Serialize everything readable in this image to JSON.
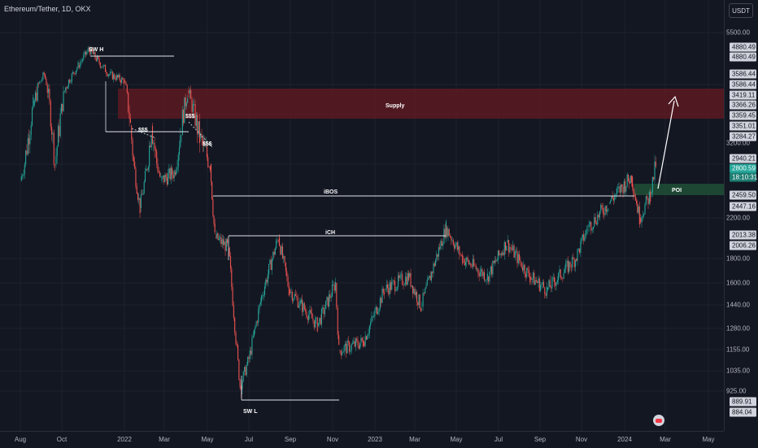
{
  "header": {
    "symbol_title": "Ethereum/Tether, 1D, OKX",
    "currency": "USDT"
  },
  "price_axis": {
    "ticks": [
      "5500.00",
      "3200.00",
      "2200.00",
      "1800.00",
      "1600.00",
      "1440.00",
      "1280.00",
      "1155.00",
      "1035.00",
      "925.00"
    ],
    "labels": [
      "4880.49",
      "4880.49",
      "3586.44",
      "3586.44",
      "3419.11",
      "3366.26",
      "3359.45",
      "3351.01",
      "3284.27",
      "2940.21",
      "2459.50",
      "2447.16",
      "2013.38",
      "2006.26",
      "889.91",
      "884.04"
    ],
    "current_price": "2800.59",
    "countdown": "18:10:31"
  },
  "time_axis": {
    "labels": [
      "Aug",
      "Oct",
      "2022",
      "Mar",
      "May",
      "Jul",
      "Sep",
      "Nov",
      "2023",
      "Mar",
      "May",
      "Jul",
      "Sep",
      "Nov",
      "2024",
      "Mar",
      "May"
    ]
  },
  "annotations": {
    "sw_high": "SW H",
    "sw_low": "SW L",
    "supply": "Supply",
    "liq1": "$$$",
    "liq2": "$$$",
    "liq3": "$$$",
    "ibos": "iBOS",
    "ich": "iCH",
    "poi": "POI"
  },
  "colors": {
    "background": "#131722",
    "up_candle": "#26a69a",
    "down_candle": "#ef5350",
    "supply_zone": "#5c1a22",
    "poi_zone": "#1f4d35",
    "current_price_label": "#26a69a"
  },
  "chart_data": {
    "type": "candlestick",
    "title": "Ethereum/Tether, 1D, OKX",
    "x_range": [
      "2021-07",
      "2024-05"
    ],
    "y_scale": "log",
    "y_range": [
      850,
      6000
    ],
    "close_path": [
      [
        "2021-08-01",
        2600
      ],
      [
        "2021-08-20",
        3300
      ],
      [
        "2021-09-05",
        3900
      ],
      [
        "2021-09-21",
        2800
      ],
      [
        "2021-10-05",
        3500
      ],
      [
        "2021-10-25",
        4200
      ],
      [
        "2021-11-10",
        4800
      ],
      [
        "2021-11-25",
        4300
      ],
      [
        "2021-12-10",
        3900
      ],
      [
        "2021-12-31",
        3700
      ],
      [
        "2022-01-10",
        3100
      ],
      [
        "2022-01-24",
        2300
      ],
      [
        "2022-02-10",
        3100
      ],
      [
        "2022-02-24",
        2600
      ],
      [
        "2022-03-15",
        2700
      ],
      [
        "2022-04-03",
        3500
      ],
      [
        "2022-04-20",
        3000
      ],
      [
        "2022-05-05",
        2800
      ],
      [
        "2022-05-12",
        2000
      ],
      [
        "2022-06-01",
        1900
      ],
      [
        "2022-06-18",
        950
      ],
      [
        "2022-07-01",
        1100
      ],
      [
        "2022-07-20",
        1500
      ],
      [
        "2022-08-14",
        2000
      ],
      [
        "2022-08-30",
        1550
      ],
      [
        "2022-09-15",
        1450
      ],
      [
        "2022-10-10",
        1300
      ],
      [
        "2022-11-05",
        1600
      ],
      [
        "2022-11-10",
        1150
      ],
      [
        "2022-12-15",
        1200
      ],
      [
        "2023-01-15",
        1550
      ],
      [
        "2023-02-20",
        1650
      ],
      [
        "2023-03-10",
        1430
      ],
      [
        "2023-04-16",
        2100
      ],
      [
        "2023-05-10",
        1800
      ],
      [
        "2023-06-15",
        1650
      ],
      [
        "2023-07-13",
        1950
      ],
      [
        "2023-08-17",
        1650
      ],
      [
        "2023-09-11",
        1550
      ],
      [
        "2023-10-23",
        1800
      ],
      [
        "2023-11-10",
        2100
      ],
      [
        "2023-12-09",
        2350
      ],
      [
        "2024-01-11",
        2650
      ],
      [
        "2024-01-23",
        2200
      ],
      [
        "2024-02-08",
        2450
      ],
      [
        "2024-02-16",
        2800
      ]
    ],
    "levels": {
      "swing_high": 4880.49,
      "supply_zone": [
        3359.45,
        3586.44
      ],
      "ibos": 2459.5,
      "ich": 2013.38,
      "swing_low": 884.04,
      "poi_zone": [
        2447.16,
        2459.5
      ]
    }
  }
}
